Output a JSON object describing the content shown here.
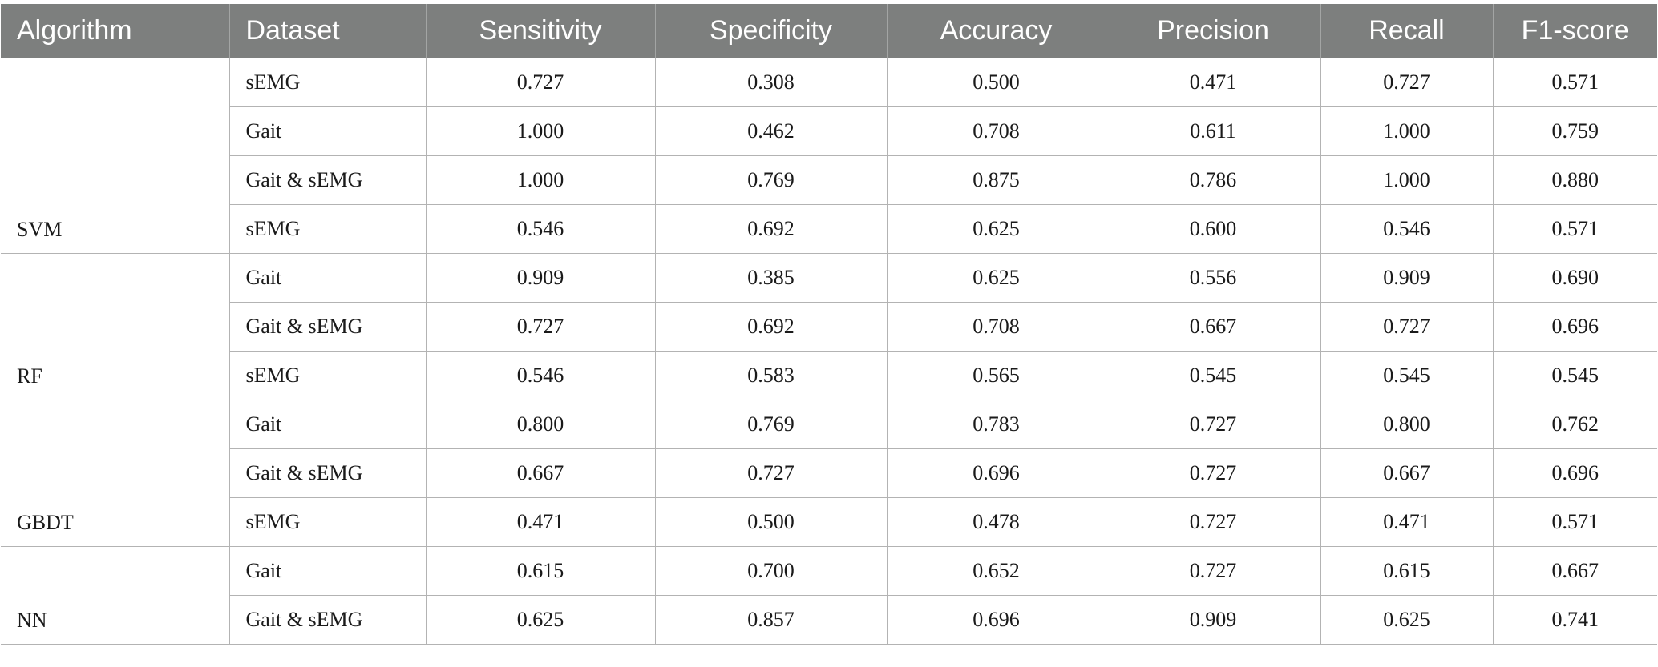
{
  "table": {
    "headers": [
      "Algorithm",
      "Dataset",
      "Sensitivity",
      "Specificity",
      "Accuracy",
      "Precision",
      "Recall",
      "F1-score"
    ],
    "groups": [
      {
        "algorithm": "SVM",
        "rows": [
          [
            "sEMG",
            "0.727",
            "0.308",
            "0.500",
            "0.471",
            "0.727",
            "0.571"
          ],
          [
            "Gait",
            "1.000",
            "0.462",
            "0.708",
            "0.611",
            "1.000",
            "0.759"
          ],
          [
            "Gait & sEMG",
            "1.000",
            "0.769",
            "0.875",
            "0.786",
            "1.000",
            "0.880"
          ],
          [
            "sEMG",
            "0.546",
            "0.692",
            "0.625",
            "0.600",
            "0.546",
            "0.571"
          ]
        ]
      },
      {
        "algorithm": "RF",
        "rows": [
          [
            "Gait",
            "0.909",
            "0.385",
            "0.625",
            "0.556",
            "0.909",
            "0.690"
          ],
          [
            "Gait & sEMG",
            "0.727",
            "0.692",
            "0.708",
            "0.667",
            "0.727",
            "0.696"
          ],
          [
            "sEMG",
            "0.546",
            "0.583",
            "0.565",
            "0.545",
            "0.545",
            "0.545"
          ]
        ]
      },
      {
        "algorithm": "GBDT",
        "rows": [
          [
            "Gait",
            "0.800",
            "0.769",
            "0.783",
            "0.727",
            "0.800",
            "0.762"
          ],
          [
            "Gait & sEMG",
            "0.667",
            "0.727",
            "0.696",
            "0.727",
            "0.667",
            "0.696"
          ],
          [
            "sEMG",
            "0.471",
            "0.500",
            "0.478",
            "0.727",
            "0.471",
            "0.571"
          ]
        ]
      },
      {
        "algorithm": "NN",
        "rows": [
          [
            "Gait",
            "0.615",
            "0.700",
            "0.652",
            "0.727",
            "0.615",
            "0.667"
          ],
          [
            "Gait & sEMG",
            "0.625",
            "0.857",
            "0.696",
            "0.909",
            "0.625",
            "0.741"
          ]
        ]
      }
    ]
  }
}
